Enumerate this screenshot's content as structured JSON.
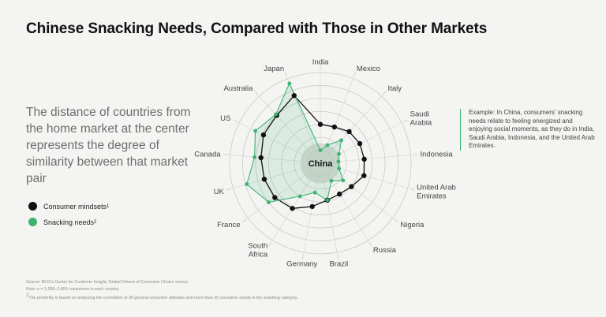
{
  "title": "Chinese Snacking Needs, Compared with Those in Other Markets",
  "description": "The distance of countries from the home market at the center represents the degree of similarity between that market pair",
  "legend": [
    {
      "label": "Consumer mindsets",
      "sup": "1",
      "color": "#111111"
    },
    {
      "label": "Snacking needs",
      "sup": "2",
      "color": "#3cb371"
    }
  ],
  "example_text": "Example: In China, consumers' snacking needs relate to feeling energized and enjoying social moments, as they do in India, Saudi Arabia, Indonesia, and the United Arab Emirates.",
  "footer": {
    "source": "Source: BCG's Center for Customer Insight, Global Drivers of Consumer Choice survey.",
    "note": "Note: n = 1,300–2,600 consumers in each country.",
    "footnote_sup": "2",
    "footnote": "The proximity is based on analyzing the correlation of 36 general consumer attitudes and more than 20 consumer needs in the snacking category."
  },
  "chart_data": {
    "type": "radar",
    "center_label": "China",
    "rings": 7,
    "categories": [
      "India",
      "Mexico",
      "Italy",
      "Saudi Arabia",
      "Indonesia",
      "United Arab Emirates",
      "Nigeria",
      "Russia",
      "Brazil",
      "Germany",
      "South Africa",
      "France",
      "UK",
      "Canada",
      "US",
      "Australia",
      "Japan"
    ],
    "series": [
      {
        "name": "Consumer mindsets",
        "color": "#111111",
        "values": [
          3.0,
          3.0,
          3.3,
          3.4,
          3.4,
          3.5,
          3.0,
          2.8,
          2.9,
          3.4,
          4.1,
          4.4,
          4.5,
          4.6,
          4.9,
          5.0,
          5.6
        ]
      },
      {
        "name": "Snacking needs",
        "color": "#3cb371",
        "values": [
          1.0,
          1.5,
          2.4,
          1.6,
          1.4,
          1.5,
          2.2,
          1.6,
          2.9,
          2.3,
          3.0,
          5.0,
          5.9,
          5.1,
          5.6,
          5.1,
          6.6
        ]
      }
    ]
  }
}
